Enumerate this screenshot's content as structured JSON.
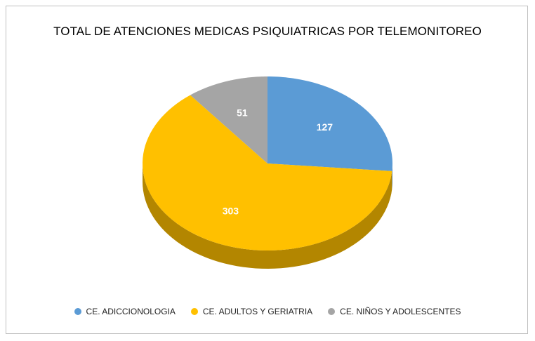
{
  "chart_data": {
    "type": "pie",
    "title": "TOTAL DE ATENCIONES MEDICAS PSIQUIATRICAS POR TELEMONITOREO",
    "categories": [
      "CE. ADICCIONOLOGIA",
      "CE. ADULTOS Y GERIATRIA",
      "CE. NIÑOS Y ADOLESCENTES"
    ],
    "values": [
      127,
      303,
      51
    ],
    "colors": [
      "#5b9bd5",
      "#ffc000",
      "#a5a5a5"
    ],
    "side_colors": [
      "#3f78ae",
      "#b38600",
      "#7a7a7a"
    ],
    "style": "3d",
    "legend_position": "bottom",
    "data_labels": true
  }
}
